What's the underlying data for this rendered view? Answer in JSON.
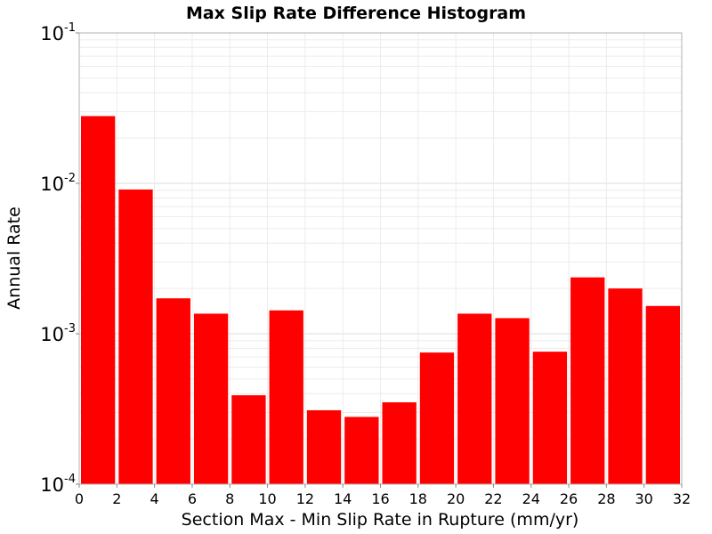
{
  "chart_data": {
    "type": "bar",
    "title": "Max Slip Rate Difference Histogram",
    "xlabel": "Section Max - Min Slip Rate in Rupture (mm/yr)",
    "ylabel": "Annual Rate",
    "x_bin_starts": [
      0,
      2,
      4,
      6,
      8,
      10,
      12,
      14,
      16,
      18,
      20,
      22,
      24,
      26,
      28,
      30
    ],
    "bin_width": 2,
    "values": [
      0.028,
      0.0091,
      0.00172,
      0.00136,
      0.00039,
      0.00143,
      0.00031,
      0.00028,
      0.00035,
      0.00075,
      0.00136,
      0.00127,
      0.00076,
      0.00237,
      0.002,
      0.00153
    ],
    "color": "#ff0000",
    "xlim": [
      0,
      32
    ],
    "ylim": [
      0.0001,
      0.1
    ],
    "yscale": "log",
    "xticks": [
      "0",
      "2",
      "4",
      "6",
      "8",
      "10",
      "12",
      "14",
      "16",
      "18",
      "20",
      "22",
      "24",
      "26",
      "28",
      "30",
      "32"
    ],
    "yticks": [
      {
        "base": "10",
        "exp": "-4"
      },
      {
        "base": "10",
        "exp": "-3"
      },
      {
        "base": "10",
        "exp": "-2"
      },
      {
        "base": "10",
        "exp": "-1"
      }
    ],
    "grid": true,
    "legend": false
  }
}
